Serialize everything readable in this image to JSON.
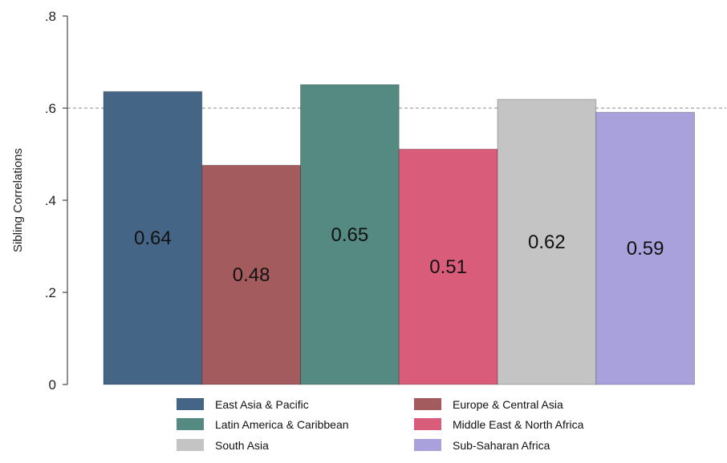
{
  "chart_data": {
    "type": "bar",
    "title": "",
    "xlabel": "",
    "ylabel": "Sibling Correlations",
    "ylim": [
      0,
      0.8
    ],
    "yticks": [
      0,
      0.2,
      0.4,
      0.6,
      0.8
    ],
    "ytick_labels": [
      "0",
      ".2",
      ".4",
      ".6",
      ".8"
    ],
    "reference_line": 0.6,
    "grid": false,
    "legend_position": "bottom",
    "series": [
      {
        "name": "East Asia & Pacific",
        "value": 0.636,
        "label": "0.64",
        "color": "#456587"
      },
      {
        "name": "Europe & Central Asia",
        "value": 0.476,
        "label": "0.48",
        "color": "#a45b5d"
      },
      {
        "name": "Latin America & Caribbean",
        "value": 0.651,
        "label": "0.65",
        "color": "#558a82"
      },
      {
        "name": "Middle East & North Africa",
        "value": 0.511,
        "label": "0.51",
        "color": "#d95d7b"
      },
      {
        "name": "South Asia",
        "value": 0.619,
        "label": "0.62",
        "color": "#c4c4c4"
      },
      {
        "name": "Sub-Saharan Africa",
        "value": 0.591,
        "label": "0.59",
        "color": "#a9a1dc"
      }
    ]
  }
}
